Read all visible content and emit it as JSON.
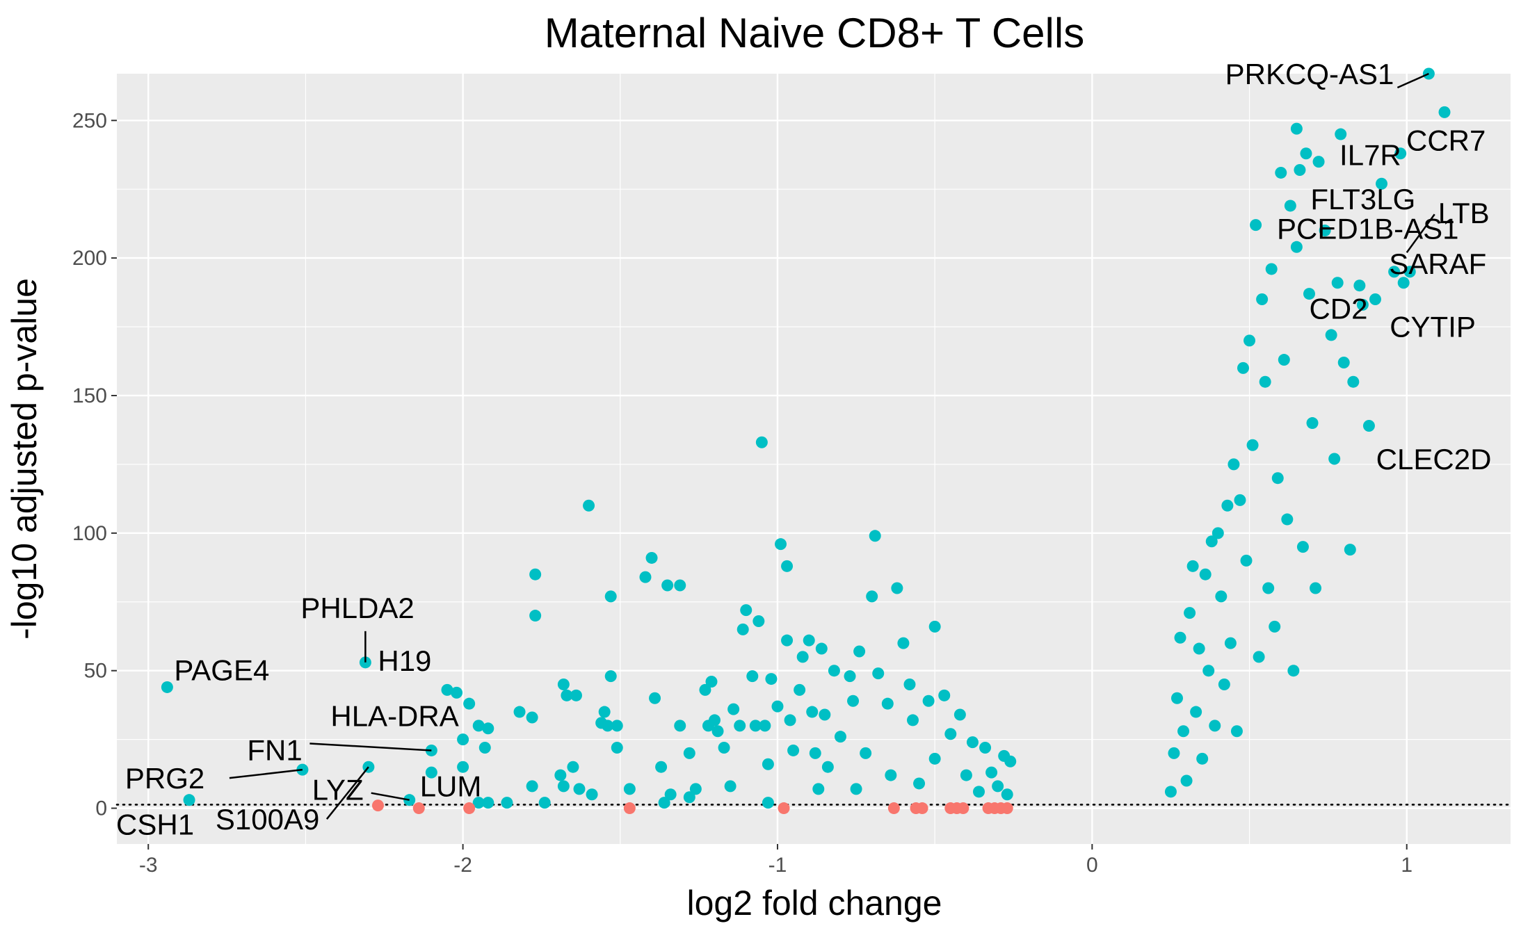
{
  "chart_data": {
    "type": "scatter",
    "title": "Maternal Naive CD8+ T Cells",
    "xlabel": "log2 fold change",
    "ylabel": "-log10 adjusted p-value",
    "xlim": [
      -3.1,
      1.33
    ],
    "ylim": [
      -13,
      267
    ],
    "xticks": [
      -3,
      -2,
      -1,
      0,
      1
    ],
    "yticks": [
      0,
      50,
      100,
      150,
      200,
      250
    ],
    "grid": true,
    "legend": "none",
    "threshold_line": {
      "y": 1.3,
      "style": "dotted"
    },
    "colors": {
      "significant": "#00BFC4",
      "not_significant": "#F8766D",
      "panel": "#EBEBEB",
      "grid": "#FFFFFF"
    },
    "series": [
      {
        "points": [
          [
            -2.94,
            44
          ],
          [
            -2.87,
            3
          ],
          [
            -2.51,
            14
          ],
          [
            -2.31,
            53
          ],
          [
            -2.3,
            15
          ],
          [
            -2.17,
            3
          ],
          [
            -2.1,
            21
          ],
          [
            -2.1,
            13
          ],
          [
            -2.05,
            43
          ],
          [
            -2.02,
            42
          ],
          [
            -2.0,
            25
          ],
          [
            -2.0,
            15
          ],
          [
            -1.98,
            38
          ],
          [
            -1.95,
            30
          ],
          [
            -1.93,
            22
          ],
          [
            -1.92,
            29
          ],
          [
            -1.95,
            2
          ],
          [
            -1.92,
            2
          ],
          [
            -1.86,
            2
          ],
          [
            -1.82,
            35
          ],
          [
            -1.78,
            8
          ],
          [
            -1.78,
            33
          ],
          [
            -1.77,
            85
          ],
          [
            -1.77,
            70
          ],
          [
            -1.74,
            2
          ],
          [
            -1.68,
            45
          ],
          [
            -1.67,
            41
          ],
          [
            -1.64,
            41
          ],
          [
            -1.69,
            12
          ],
          [
            -1.68,
            8
          ],
          [
            -1.65,
            15
          ],
          [
            -1.63,
            7
          ],
          [
            -1.6,
            110
          ],
          [
            -1.59,
            5
          ],
          [
            -1.56,
            31
          ],
          [
            -1.55,
            35
          ],
          [
            -1.54,
            30
          ],
          [
            -1.53,
            77
          ],
          [
            -1.53,
            48
          ],
          [
            -1.51,
            30
          ],
          [
            -1.51,
            22
          ],
          [
            -1.47,
            7
          ],
          [
            -1.42,
            84
          ],
          [
            -1.4,
            91
          ],
          [
            -1.39,
            40
          ],
          [
            -1.35,
            81
          ],
          [
            -1.31,
            81
          ],
          [
            -1.37,
            15
          ],
          [
            -1.36,
            2
          ],
          [
            -1.34,
            5
          ],
          [
            -1.31,
            30
          ],
          [
            -1.28,
            20
          ],
          [
            -1.28,
            4
          ],
          [
            -1.26,
            7
          ],
          [
            -1.23,
            43
          ],
          [
            -1.22,
            30
          ],
          [
            -1.21,
            46
          ],
          [
            -1.2,
            32
          ],
          [
            -1.19,
            28
          ],
          [
            -1.17,
            22
          ],
          [
            -1.15,
            8
          ],
          [
            -1.14,
            36
          ],
          [
            -1.12,
            30
          ],
          [
            -1.11,
            65
          ],
          [
            -1.1,
            72
          ],
          [
            -1.08,
            48
          ],
          [
            -1.07,
            30
          ],
          [
            -1.06,
            68
          ],
          [
            -1.05,
            133
          ],
          [
            -1.04,
            30
          ],
          [
            -1.03,
            16
          ],
          [
            -1.03,
            2
          ],
          [
            -1.02,
            47
          ],
          [
            -1.0,
            37
          ],
          [
            -0.99,
            96
          ],
          [
            -0.97,
            88
          ],
          [
            -0.97,
            61
          ],
          [
            -0.96,
            32
          ],
          [
            -0.95,
            21
          ],
          [
            -0.93,
            43
          ],
          [
            -0.92,
            55
          ],
          [
            -0.9,
            61
          ],
          [
            -0.89,
            35
          ],
          [
            -0.88,
            20
          ],
          [
            -0.87,
            7
          ],
          [
            -0.86,
            58
          ],
          [
            -0.85,
            34
          ],
          [
            -0.84,
            15
          ],
          [
            -0.82,
            50
          ],
          [
            -0.8,
            26
          ],
          [
            -0.77,
            48
          ],
          [
            -0.76,
            39
          ],
          [
            -0.75,
            7
          ],
          [
            -0.74,
            57
          ],
          [
            -0.72,
            20
          ],
          [
            -0.69,
            99
          ],
          [
            -0.7,
            77
          ],
          [
            -0.68,
            49
          ],
          [
            -0.65,
            38
          ],
          [
            -0.64,
            12
          ],
          [
            -0.62,
            80
          ],
          [
            -0.6,
            60
          ],
          [
            -0.58,
            45
          ],
          [
            -0.57,
            32
          ],
          [
            -0.55,
            9
          ],
          [
            -0.52,
            39
          ],
          [
            -0.5,
            66
          ],
          [
            -0.5,
            18
          ],
          [
            -0.47,
            41
          ],
          [
            -0.45,
            27
          ],
          [
            -0.42,
            34
          ],
          [
            -0.4,
            12
          ],
          [
            -0.38,
            24
          ],
          [
            -0.36,
            6
          ],
          [
            -0.34,
            22
          ],
          [
            -0.32,
            13
          ],
          [
            -0.3,
            8
          ],
          [
            -0.28,
            19
          ],
          [
            -0.27,
            5
          ],
          [
            -0.26,
            17
          ],
          [
            0.25,
            6
          ],
          [
            0.26,
            20
          ],
          [
            0.27,
            40
          ],
          [
            0.28,
            62
          ],
          [
            0.29,
            28
          ],
          [
            0.3,
            10
          ],
          [
            0.31,
            71
          ],
          [
            0.32,
            88
          ],
          [
            0.33,
            35
          ],
          [
            0.34,
            58
          ],
          [
            0.35,
            18
          ],
          [
            0.36,
            85
          ],
          [
            0.37,
            50
          ],
          [
            0.38,
            97
          ],
          [
            0.39,
            30
          ],
          [
            0.4,
            100
          ],
          [
            0.41,
            77
          ],
          [
            0.42,
            45
          ],
          [
            0.43,
            110
          ],
          [
            0.44,
            60
          ],
          [
            0.45,
            125
          ],
          [
            0.46,
            28
          ],
          [
            0.47,
            112
          ],
          [
            0.48,
            160
          ],
          [
            0.49,
            90
          ],
          [
            0.5,
            170
          ],
          [
            0.51,
            132
          ],
          [
            0.52,
            212
          ],
          [
            0.53,
            55
          ],
          [
            0.54,
            185
          ],
          [
            0.55,
            155
          ],
          [
            0.56,
            80
          ],
          [
            0.57,
            196
          ],
          [
            0.58,
            66
          ],
          [
            0.59,
            120
          ],
          [
            0.6,
            231
          ],
          [
            0.61,
            163
          ],
          [
            0.62,
            105
          ],
          [
            0.63,
            219
          ],
          [
            0.64,
            50
          ],
          [
            0.65,
            204
          ],
          [
            0.65,
            247
          ],
          [
            0.66,
            232
          ],
          [
            0.67,
            95
          ],
          [
            0.68,
            238
          ],
          [
            0.69,
            187
          ],
          [
            0.7,
            140
          ],
          [
            0.71,
            80
          ],
          [
            0.72,
            235
          ],
          [
            0.74,
            210
          ],
          [
            0.76,
            172
          ],
          [
            0.77,
            127
          ],
          [
            0.78,
            191
          ],
          [
            0.79,
            245
          ],
          [
            0.8,
            162
          ],
          [
            0.82,
            94
          ],
          [
            0.83,
            155
          ],
          [
            0.85,
            190
          ],
          [
            0.86,
            183
          ],
          [
            0.88,
            139
          ],
          [
            0.9,
            185
          ],
          [
            0.92,
            227
          ],
          [
            0.96,
            195
          ],
          [
            0.98,
            238
          ],
          [
            0.99,
            191
          ],
          [
            1.01,
            195
          ],
          [
            1.07,
            267
          ],
          [
            1.12,
            253
          ]
        ]
      },
      {
        "points": [
          [
            -2.27,
            1
          ],
          [
            -2.14,
            0
          ],
          [
            -1.98,
            0
          ],
          [
            -1.47,
            0
          ],
          [
            -0.98,
            0
          ],
          [
            -0.63,
            0
          ],
          [
            -0.56,
            0
          ],
          [
            -0.54,
            0
          ],
          [
            -0.45,
            0
          ],
          [
            -0.43,
            0
          ],
          [
            -0.41,
            0
          ],
          [
            -0.33,
            0
          ],
          [
            -0.31,
            0
          ],
          [
            -0.29,
            0
          ],
          [
            -0.27,
            0
          ]
        ]
      }
    ],
    "annotations": [
      {
        "label": "PRKCQ-AS1",
        "x": 1.07,
        "y": 267
      },
      {
        "label": "CCR7",
        "x": 1.12,
        "y": 253
      },
      {
        "label": "IL7R",
        "x": 0.72,
        "y": 235
      },
      {
        "label": "FLT3LG",
        "x": 0.65,
        "y": 219
      },
      {
        "label": "LTB",
        "x": 1.0,
        "y": 202
      },
      {
        "label": "PCED1B-AS1",
        "x": 0.72,
        "y": 210
      },
      {
        "label": "SARAF",
        "x": 1.01,
        "y": 195
      },
      {
        "label": "CYTIP",
        "x": 0.99,
        "y": 191
      },
      {
        "label": "CD2",
        "x": 0.69,
        "y": 187
      },
      {
        "label": "CLEC2D",
        "x": 0.77,
        "y": 127
      },
      {
        "label": "PHLDA2",
        "x": -2.31,
        "y": 53
      },
      {
        "label": "H19",
        "x": -2.31,
        "y": 53
      },
      {
        "label": "PAGE4",
        "x": -2.94,
        "y": 44
      },
      {
        "label": "HLA-DRA",
        "x": -2.1,
        "y": 21
      },
      {
        "label": "FN1",
        "x": -2.1,
        "y": 21
      },
      {
        "label": "PRG2",
        "x": -2.51,
        "y": 14
      },
      {
        "label": "LYZ",
        "x": -2.17,
        "y": 3
      },
      {
        "label": "LUM",
        "x": -2.17,
        "y": 3
      },
      {
        "label": "CSH1",
        "x": -2.87,
        "y": 3
      },
      {
        "label": "S100A9",
        "x": -2.3,
        "y": 15
      }
    ]
  }
}
